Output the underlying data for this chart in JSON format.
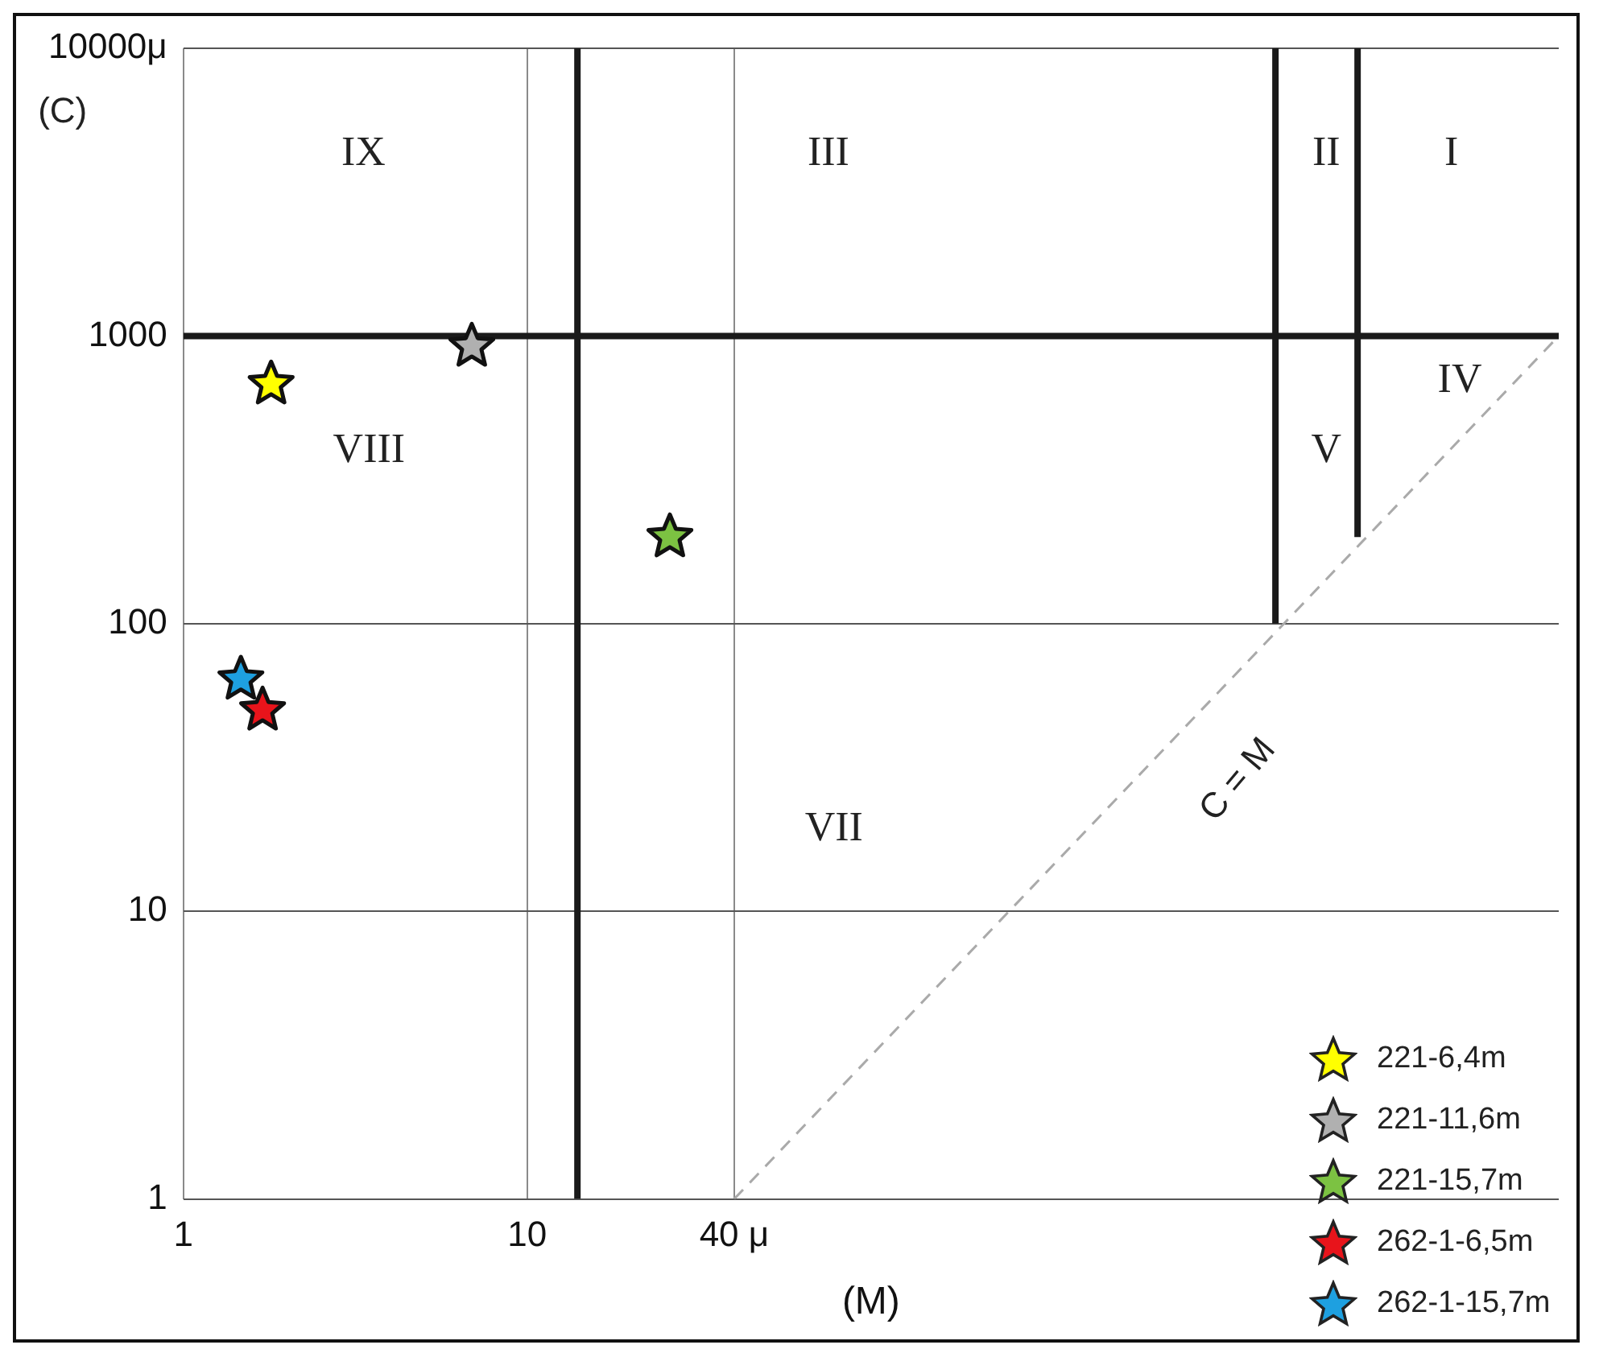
{
  "chart_data": {
    "type": "scatter",
    "xlabel": "(M)",
    "ylabel": "(C)",
    "log": "xy",
    "xlim": [
      1,
      10000
    ],
    "ylim": [
      1,
      10000
    ],
    "xticks": [
      1,
      10,
      {
        "value": 40,
        "label": "40 μ"
      }
    ],
    "yticks": [
      1,
      10,
      100,
      1000,
      {
        "value": 10000,
        "label": "10000μ"
      }
    ],
    "grid": true,
    "legend": "bottom right",
    "marker": "star",
    "series": [
      {
        "name": "221-6,4m",
        "color": "#ffff00",
        "x": [
          1.8
        ],
        "values": [
          680
        ]
      },
      {
        "name": "221-11,6m",
        "color": "#b0b0b0",
        "x": [
          6.9
        ],
        "values": [
          920
        ]
      },
      {
        "name": "221-15,7m",
        "color": "#7cc242",
        "x": [
          26
        ],
        "values": [
          200
        ]
      },
      {
        "name": "262-1-6,5m",
        "color": "#e8141b",
        "x": [
          1.7
        ],
        "values": [
          50
        ]
      },
      {
        "name": "262-1-15,7m",
        "color": "#1ea0e0",
        "x": [
          1.47
        ],
        "values": [
          64
        ]
      },
      {
        "type": "line",
        "color": "#1a1a1a",
        "x": [
          1,
          10000
        ],
        "values": [
          1000,
          1000
        ],
        "line_style": "solid",
        "marker": "none"
      },
      {
        "type": "line",
        "color": "#1a1a1a",
        "x": [
          14,
          14
        ],
        "values": [
          1,
          10000
        ],
        "line_style": "solid",
        "marker": "none"
      },
      {
        "type": "line",
        "color": "#1a1a1a",
        "x": [
          1500,
          1500
        ],
        "values": [
          100,
          10000
        ],
        "line_style": "solid",
        "marker": "none"
      },
      {
        "type": "line",
        "color": "#1a1a1a",
        "x": [
          2600,
          2600
        ],
        "values": [
          200,
          10000
        ],
        "line_style": "solid",
        "marker": "none"
      },
      {
        "type": "line",
        "color": "#aaaaaa",
        "x": [
          40,
          10000
        ],
        "values": [
          1,
          1000
        ],
        "line_style": "dashed",
        "marker": "none"
      }
    ],
    "annotations": [
      "IX",
      "III",
      "II",
      "I",
      "IV",
      "V",
      "VIII",
      "VII",
      "C = M"
    ]
  }
}
